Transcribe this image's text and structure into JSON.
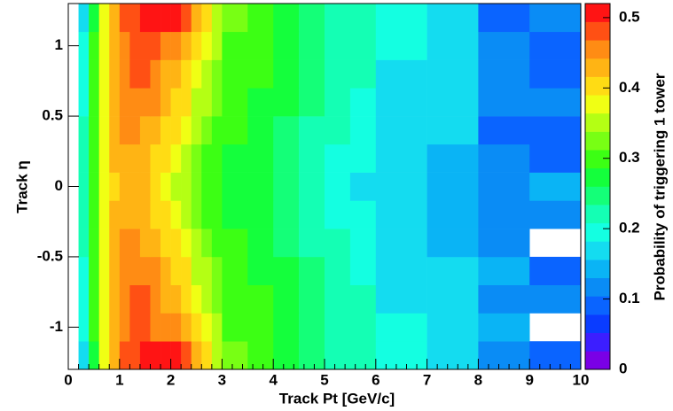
{
  "chart_data": {
    "type": "heatmap",
    "xlabel": "Track Pt [GeV/c]",
    "ylabel": "Track η",
    "zlabel": "Probability of triggering 1 tower",
    "xlim": [
      0,
      10
    ],
    "ylim": [
      -1.3,
      1.3
    ],
    "zlim": [
      0,
      0.52
    ],
    "xticks": [
      0,
      1,
      2,
      3,
      4,
      5,
      6,
      7,
      8,
      9,
      10
    ],
    "yticks": [
      -1,
      -0.5,
      0,
      0.5,
      1
    ],
    "zticks": [
      0,
      0.1,
      0.2,
      0.3,
      0.4,
      0.5
    ],
    "x_bins": [
      0.2,
      0.4,
      0.6,
      0.8,
      1.0,
      1.2,
      1.4,
      1.6,
      1.8,
      2.0,
      2.2,
      2.4,
      2.6,
      2.8,
      3.0,
      3.5,
      4.0,
      4.5,
      5.0,
      5.5,
      6.0,
      7.0,
      8.0,
      9.0,
      10.0
    ],
    "y_bins": [
      -1.3,
      -1.1,
      -0.9,
      -0.7,
      -0.5,
      -0.3,
      -0.1,
      0.1,
      0.3,
      0.5,
      0.7,
      0.9,
      1.1,
      1.3
    ],
    "palette": [
      "#7a00e6",
      "#3c1eff",
      "#0a3cff",
      "#0a64ff",
      "#0a8cf5",
      "#0ab4f5",
      "#14dcf0",
      "#14ffe1",
      "#14ffb4",
      "#14ff78",
      "#14ff3c",
      "#3cff14",
      "#78ff14",
      "#b4ff14",
      "#f0ff14",
      "#ffdc14",
      "#ffb414",
      "#ff8c14",
      "#ff5014",
      "#ff1414"
    ],
    "z": [
      [
        0.18,
        0.28,
        0.37,
        0.43,
        0.47,
        0.49,
        0.5,
        0.51,
        0.51,
        0.5,
        0.47,
        0.43,
        0.39,
        0.35,
        0.32,
        0.3,
        0.28,
        0.25,
        0.23,
        0.21,
        0.19,
        0.17,
        0.12,
        0.08
      ],
      [
        0.19,
        0.29,
        0.37,
        0.43,
        0.46,
        0.47,
        0.47,
        0.46,
        0.46,
        0.45,
        0.43,
        0.4,
        0.37,
        0.34,
        0.31,
        0.29,
        0.27,
        0.25,
        0.23,
        0.21,
        0.19,
        0.17,
        0.13,
        null
      ],
      [
        0.2,
        0.3,
        0.38,
        0.43,
        0.46,
        0.47,
        0.48,
        0.46,
        0.44,
        0.42,
        0.4,
        0.37,
        0.35,
        0.33,
        0.31,
        0.29,
        0.27,
        0.24,
        0.22,
        0.21,
        0.18,
        0.17,
        0.11,
        0.12
      ],
      [
        0.2,
        0.3,
        0.38,
        0.43,
        0.46,
        0.46,
        0.46,
        0.45,
        0.43,
        0.41,
        0.39,
        0.36,
        0.34,
        0.32,
        0.3,
        0.28,
        0.26,
        0.24,
        0.22,
        0.2,
        0.18,
        0.16,
        0.13,
        0.1
      ],
      [
        0.21,
        0.31,
        0.38,
        0.42,
        0.45,
        0.45,
        0.44,
        0.43,
        0.41,
        0.39,
        0.37,
        0.35,
        0.33,
        0.31,
        0.29,
        0.27,
        0.25,
        0.23,
        0.21,
        0.19,
        0.17,
        0.15,
        0.12,
        null
      ],
      [
        0.22,
        0.31,
        0.37,
        0.42,
        0.44,
        0.44,
        0.43,
        0.41,
        0.39,
        0.37,
        0.35,
        0.33,
        0.31,
        0.3,
        0.28,
        0.26,
        0.24,
        0.22,
        0.2,
        0.19,
        0.17,
        0.15,
        0.12,
        0.11
      ],
      [
        0.22,
        0.31,
        0.37,
        0.41,
        0.43,
        0.43,
        0.42,
        0.4,
        0.38,
        0.36,
        0.34,
        0.32,
        0.3,
        0.29,
        0.27,
        0.26,
        0.24,
        0.22,
        0.2,
        0.18,
        0.16,
        0.15,
        0.11,
        0.14
      ],
      [
        0.22,
        0.31,
        0.37,
        0.42,
        0.44,
        0.44,
        0.43,
        0.41,
        0.39,
        0.37,
        0.35,
        0.33,
        0.31,
        0.29,
        0.28,
        0.26,
        0.24,
        0.22,
        0.2,
        0.19,
        0.17,
        0.15,
        0.12,
        0.1
      ],
      [
        0.21,
        0.31,
        0.38,
        0.42,
        0.45,
        0.45,
        0.44,
        0.43,
        0.41,
        0.39,
        0.37,
        0.35,
        0.33,
        0.31,
        0.29,
        0.27,
        0.25,
        0.23,
        0.21,
        0.19,
        0.17,
        0.16,
        0.1,
        0.09
      ],
      [
        0.2,
        0.3,
        0.38,
        0.43,
        0.46,
        0.46,
        0.46,
        0.45,
        0.43,
        0.41,
        0.39,
        0.36,
        0.34,
        0.32,
        0.3,
        0.28,
        0.26,
        0.24,
        0.22,
        0.2,
        0.18,
        0.16,
        0.12,
        0.11
      ],
      [
        0.2,
        0.3,
        0.38,
        0.43,
        0.46,
        0.47,
        0.48,
        0.46,
        0.44,
        0.42,
        0.4,
        0.37,
        0.35,
        0.33,
        0.31,
        0.29,
        0.27,
        0.24,
        0.22,
        0.21,
        0.18,
        0.17,
        0.12,
        0.09
      ],
      [
        0.19,
        0.29,
        0.37,
        0.43,
        0.46,
        0.47,
        0.47,
        0.47,
        0.46,
        0.45,
        0.43,
        0.4,
        0.37,
        0.34,
        0.31,
        0.29,
        0.27,
        0.25,
        0.23,
        0.21,
        0.19,
        0.17,
        0.12,
        0.1
      ],
      [
        0.18,
        0.28,
        0.37,
        0.43,
        0.47,
        0.49,
        0.5,
        0.51,
        0.51,
        0.5,
        0.47,
        0.43,
        0.39,
        0.35,
        0.32,
        0.3,
        0.28,
        0.25,
        0.23,
        0.21,
        0.19,
        0.17,
        0.1,
        0.11
      ]
    ]
  }
}
